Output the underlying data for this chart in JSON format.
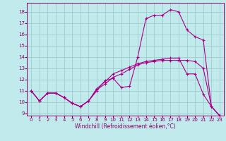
{
  "title": "",
  "xlabel": "Windchill (Refroidissement éolien,°C)",
  "xlim": [
    -0.5,
    23.5
  ],
  "ylim": [
    8.8,
    18.8
  ],
  "xticks": [
    0,
    1,
    2,
    3,
    4,
    5,
    6,
    7,
    8,
    9,
    10,
    11,
    12,
    13,
    14,
    15,
    16,
    17,
    18,
    19,
    20,
    21,
    22,
    23
  ],
  "yticks": [
    9,
    10,
    11,
    12,
    13,
    14,
    15,
    16,
    17,
    18
  ],
  "bg_color": "#c0eaec",
  "grid_color": "#a0cccc",
  "line_color": "#aa0088",
  "curves": [
    [
      11.0,
      10.1,
      10.8,
      10.8,
      10.4,
      9.9,
      9.6,
      10.1,
      11.0,
      11.9,
      12.1,
      11.3,
      11.4,
      14.0,
      17.4,
      17.7,
      17.7,
      18.2,
      18.0,
      16.4,
      15.8,
      15.5,
      9.6,
      8.8
    ],
    [
      11.0,
      10.1,
      10.8,
      10.8,
      10.4,
      9.9,
      9.6,
      10.1,
      11.1,
      11.6,
      12.2,
      12.5,
      12.9,
      13.3,
      13.5,
      13.6,
      13.7,
      13.7,
      13.7,
      13.7,
      13.6,
      13.0,
      9.6,
      8.8
    ],
    [
      11.0,
      10.1,
      10.8,
      10.8,
      10.4,
      9.9,
      9.6,
      10.1,
      11.2,
      11.8,
      12.5,
      12.8,
      13.1,
      13.4,
      13.6,
      13.7,
      13.8,
      13.9,
      13.9,
      12.5,
      12.5,
      10.7,
      9.6,
      8.8
    ]
  ],
  "tick_fontsize": 5,
  "xlabel_fontsize": 5.5,
  "tick_color": "#880066",
  "spine_color": "#880066"
}
